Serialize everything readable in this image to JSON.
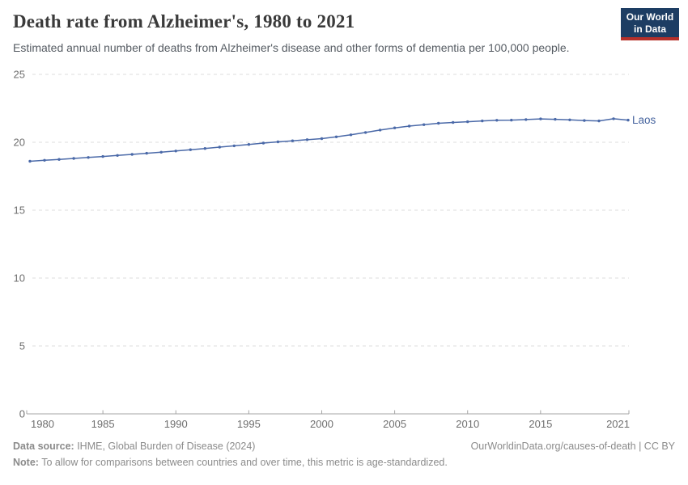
{
  "header": {
    "title": "Death rate from Alzheimer's, 1980 to 2021",
    "subtitle": "Estimated annual number of deaths from Alzheimer's disease and other forms of dementia per 100,000 people.",
    "logo": {
      "line1": "Our World",
      "line2": "in Data",
      "bg_color": "#1d3d63",
      "accent_color": "#b5302a"
    }
  },
  "chart_data": {
    "type": "line",
    "title": "Death rate from Alzheimer's, 1980 to 2021",
    "xlabel": "",
    "ylabel": "",
    "ylim": [
      0,
      25
    ],
    "yticks": [
      0,
      5,
      10,
      15,
      20,
      25
    ],
    "xticks": [
      1980,
      1985,
      1990,
      1995,
      2000,
      2005,
      2010,
      2015,
      2021
    ],
    "grid": "horizontal-dashed",
    "legend_position": "end-of-line-label",
    "x": [
      1980,
      1981,
      1982,
      1983,
      1984,
      1985,
      1986,
      1987,
      1988,
      1989,
      1990,
      1991,
      1992,
      1993,
      1994,
      1995,
      1996,
      1997,
      1998,
      1999,
      2000,
      2001,
      2002,
      2003,
      2004,
      2005,
      2006,
      2007,
      2008,
      2009,
      2010,
      2011,
      2012,
      2013,
      2014,
      2015,
      2016,
      2017,
      2018,
      2019,
      2020,
      2021
    ],
    "series": [
      {
        "name": "Laos",
        "color": "#4a69a8",
        "label_color": "#45639e",
        "values": [
          18.6,
          18.67,
          18.74,
          18.81,
          18.88,
          18.95,
          19.03,
          19.11,
          19.19,
          19.27,
          19.36,
          19.45,
          19.54,
          19.64,
          19.74,
          19.84,
          19.94,
          20.03,
          20.11,
          20.19,
          20.27,
          20.4,
          20.55,
          20.72,
          20.9,
          21.06,
          21.19,
          21.3,
          21.4,
          21.46,
          21.51,
          21.57,
          21.62,
          21.63,
          21.67,
          21.72,
          21.69,
          21.65,
          21.6,
          21.57,
          21.73,
          21.63
        ]
      }
    ],
    "colors": {
      "gridline": "#dcdcdc",
      "axis": "#a5a5a5",
      "tick_label": "#6e6e6e"
    }
  },
  "footer": {
    "data_source_label": "Data source:",
    "data_source_value": " IHME, Global Burden of Disease (2024)",
    "link_text": "OurWorldinData.org/causes-of-death | CC BY",
    "note_label": "Note:",
    "note_text": " To allow for comparisons between countries and over time, this metric is age-standardized."
  }
}
